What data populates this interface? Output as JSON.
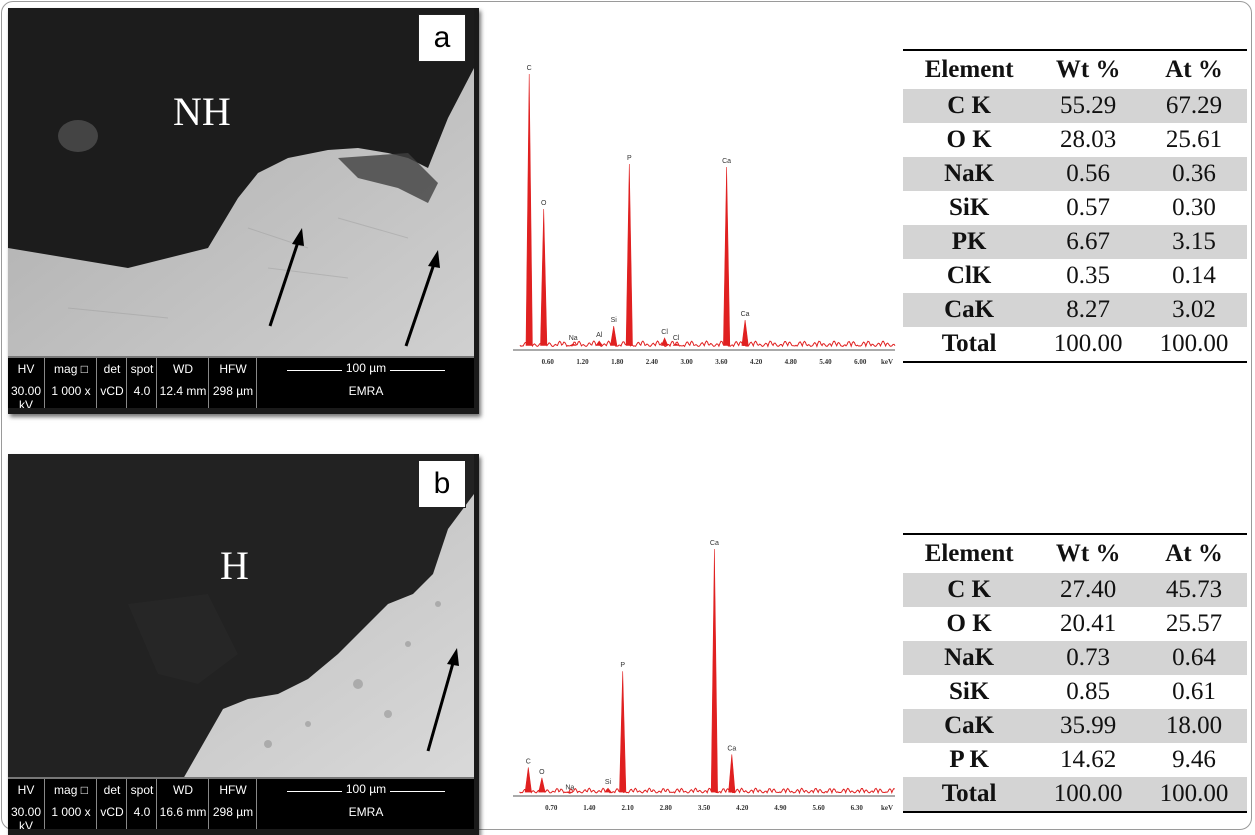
{
  "panels": [
    {
      "letter": "a",
      "sem_label": "NH",
      "databar": {
        "cols": [
          {
            "k": "HV",
            "v": "30.00 kV"
          },
          {
            "k": "mag □",
            "v": "1 000 x"
          },
          {
            "k": "det",
            "v": "vCD"
          },
          {
            "k": "spot",
            "v": "4.0"
          },
          {
            "k": "WD",
            "v": "12.4 mm"
          },
          {
            "k": "HFW",
            "v": "298 µm"
          }
        ],
        "scale": "100 µm",
        "lab": "EMRA"
      },
      "table": {
        "headers": [
          "Element",
          "Wt %",
          "At %"
        ],
        "rows": [
          [
            "C K",
            "55.29",
            "67.29"
          ],
          [
            "O K",
            "28.03",
            "25.61"
          ],
          [
            "NaK",
            "0.56",
            "0.36"
          ],
          [
            "SiK",
            "0.57",
            "0.30"
          ],
          [
            "PK",
            "6.67",
            "3.15"
          ],
          [
            "ClK",
            "0.35",
            "0.14"
          ],
          [
            "CaK",
            "8.27",
            "3.02"
          ],
          [
            "Total",
            "100.00",
            "100.00"
          ]
        ]
      }
    },
    {
      "letter": "b",
      "sem_label": "H",
      "databar": {
        "cols": [
          {
            "k": "HV",
            "v": "30.00 kV"
          },
          {
            "k": "mag □",
            "v": "1 000 x"
          },
          {
            "k": "det",
            "v": "vCD"
          },
          {
            "k": "spot",
            "v": "4.0"
          },
          {
            "k": "WD",
            "v": "16.6 mm"
          },
          {
            "k": "HFW",
            "v": "298 µm"
          }
        ],
        "scale": "100 µm",
        "lab": "EMRA"
      },
      "table": {
        "headers": [
          "Element",
          "Wt %",
          "At %"
        ],
        "rows": [
          [
            "C K",
            "27.40",
            "45.73"
          ],
          [
            "O K",
            "20.41",
            "25.57"
          ],
          [
            "NaK",
            "0.73",
            "0.64"
          ],
          [
            "SiK",
            "0.85",
            "0.61"
          ],
          [
            "CaK",
            "35.99",
            "18.00"
          ],
          [
            "P K",
            "14.62",
            "9.46"
          ],
          [
            "Total",
            "100.00",
            "100.00"
          ]
        ]
      }
    }
  ],
  "chart_data": [
    {
      "type": "line",
      "xlabel": "keV",
      "ticks": [
        "0.60",
        "1.20",
        "1.80",
        "2.40",
        "3.00",
        "3.60",
        "4.20",
        "4.80",
        "5.40",
        "6.00"
      ],
      "xlim": [
        0.0,
        6.6
      ],
      "ylim": [
        0,
        100
      ],
      "color": "#e02020",
      "peaks": [
        {
          "label": "C",
          "x": 0.28,
          "y": 92
        },
        {
          "label": "O",
          "x": 0.53,
          "y": 47
        },
        {
          "label": "Na",
          "x": 1.04,
          "y": 2
        },
        {
          "label": "Al",
          "x": 1.49,
          "y": 3
        },
        {
          "label": "Si",
          "x": 1.74,
          "y": 8
        },
        {
          "label": "P",
          "x": 2.01,
          "y": 62
        },
        {
          "label": "Cl",
          "x": 2.62,
          "y": 4
        },
        {
          "label": "Cl",
          "x": 2.82,
          "y": 2
        },
        {
          "label": "Ca",
          "x": 3.69,
          "y": 61
        },
        {
          "label": "Ca",
          "x": 4.01,
          "y": 10
        }
      ]
    },
    {
      "type": "line",
      "xlabel": "keV",
      "ticks": [
        "0.70",
        "1.40",
        "2.10",
        "2.80",
        "3.50",
        "4.20",
        "4.90",
        "5.60",
        "6.30"
      ],
      "xlim": [
        0.0,
        7.0
      ],
      "ylim": [
        0,
        100
      ],
      "color": "#e02020",
      "peaks": [
        {
          "label": "C",
          "x": 0.28,
          "y": 11
        },
        {
          "label": "O",
          "x": 0.53,
          "y": 7
        },
        {
          "label": "Na",
          "x": 1.04,
          "y": 1
        },
        {
          "label": "Si",
          "x": 1.74,
          "y": 3
        },
        {
          "label": "P",
          "x": 2.01,
          "y": 48
        },
        {
          "label": "Ca",
          "x": 3.69,
          "y": 95
        },
        {
          "label": "Ca",
          "x": 4.01,
          "y": 16
        }
      ]
    }
  ]
}
